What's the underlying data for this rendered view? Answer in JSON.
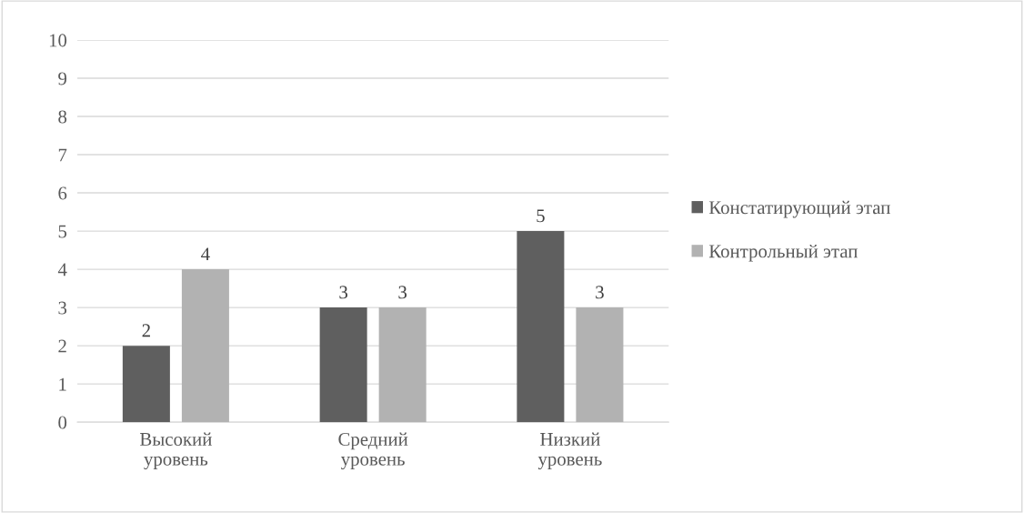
{
  "chart_data": {
    "type": "bar",
    "categories": [
      "Высокий\nуровень",
      "Средний\nуровень",
      "Низкий\nуровень"
    ],
    "series": [
      {
        "name": "Констатирующий этап",
        "color": "#5f5f5f",
        "values": [
          2,
          3,
          5
        ]
      },
      {
        "name": "Контрольный этап",
        "color": "#b2b2b2",
        "values": [
          4,
          3,
          3
        ]
      }
    ],
    "ylim": [
      0,
      10
    ],
    "yticks": [
      0,
      1,
      2,
      3,
      4,
      5,
      6,
      7,
      8,
      9,
      10
    ],
    "grid": "y",
    "legend": "right",
    "data_labels": true
  }
}
